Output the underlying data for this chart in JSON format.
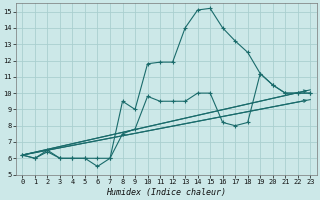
{
  "xlabel": "Humidex (Indice chaleur)",
  "bg_color": "#cce8e8",
  "grid_color": "#aacfcf",
  "line_color": "#1a6b6b",
  "xlim": [
    -0.5,
    23.5
  ],
  "ylim": [
    5,
    15.5
  ],
  "yticks": [
    5,
    6,
    7,
    8,
    9,
    10,
    11,
    12,
    13,
    14,
    15
  ],
  "xticks": [
    0,
    1,
    2,
    3,
    4,
    5,
    6,
    7,
    8,
    9,
    10,
    11,
    12,
    13,
    14,
    15,
    16,
    17,
    18,
    19,
    20,
    21,
    22,
    23
  ],
  "line1_x": [
    0,
    1,
    2,
    3,
    4,
    5,
    6,
    7,
    8,
    9,
    10,
    11,
    12,
    13,
    14,
    15,
    16,
    17,
    18,
    19,
    20,
    21,
    22,
    23
  ],
  "line1_y": [
    6.2,
    6.0,
    6.5,
    6.0,
    6.0,
    6.0,
    6.0,
    6.0,
    9.5,
    9.0,
    11.8,
    11.9,
    11.9,
    14.0,
    15.1,
    15.2,
    14.0,
    13.2,
    12.5,
    11.2,
    10.5,
    10.0,
    10.0,
    10.0
  ],
  "line2_x": [
    0,
    1,
    2,
    3,
    4,
    5,
    6,
    7,
    8,
    9,
    10,
    11,
    12,
    13,
    14,
    15,
    16,
    17,
    18,
    19,
    20,
    21,
    22,
    23
  ],
  "line2_y": [
    6.2,
    6.0,
    6.4,
    6.0,
    6.0,
    6.0,
    5.5,
    6.0,
    7.5,
    7.8,
    9.8,
    9.5,
    9.5,
    9.5,
    10.0,
    10.0,
    8.2,
    8.0,
    8.2,
    11.2,
    10.5,
    10.0,
    10.0,
    10.0
  ],
  "line3_x": [
    0,
    23
  ],
  "line3_y": [
    6.2,
    9.6
  ],
  "line4_x": [
    0,
    23
  ],
  "line4_y": [
    6.2,
    10.2
  ]
}
